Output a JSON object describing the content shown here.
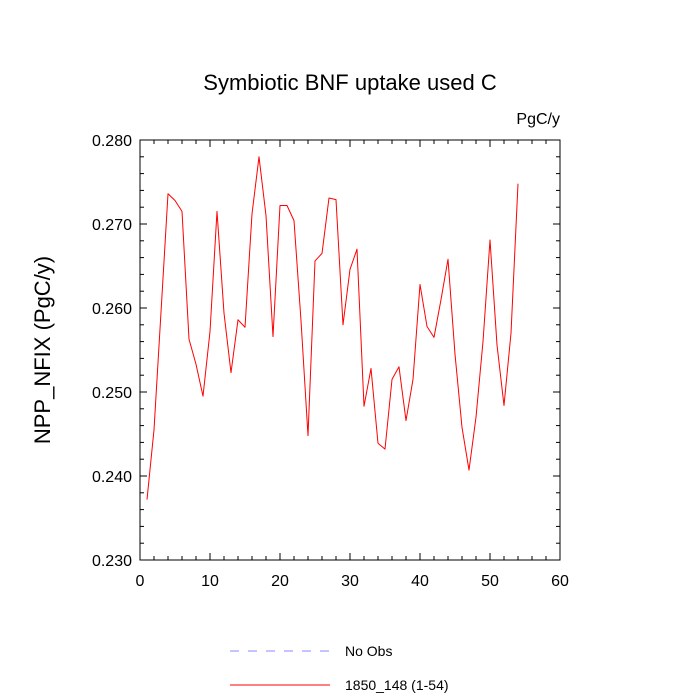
{
  "chart_data": {
    "type": "line",
    "title": "Symbiotic BNF uptake used C",
    "units_label": "PgC/y",
    "ylabel": "NPP_NFIX  (PgC/y)",
    "xlabel": "",
    "xlim": [
      0,
      60
    ],
    "ylim": [
      0.23,
      0.28
    ],
    "xticks": [
      0,
      10,
      20,
      30,
      40,
      50,
      60
    ],
    "xtick_labels": [
      "0",
      "10",
      "20",
      "30",
      "40",
      "50",
      "60"
    ],
    "yticks": [
      0.23,
      0.24,
      0.25,
      0.26,
      0.27,
      0.28
    ],
    "ytick_labels": [
      "0.230",
      "0.240",
      "0.250",
      "0.260",
      "0.270",
      "0.280"
    ],
    "grid": false,
    "legend_position": "bottom-center",
    "series": [
      {
        "name": "1850_148 (1-54)",
        "color": "#ff0000",
        "style": "solid",
        "x": [
          1,
          2,
          3,
          4,
          5,
          6,
          7,
          8,
          9,
          10,
          11,
          12,
          13,
          14,
          15,
          16,
          17,
          18,
          19,
          20,
          21,
          22,
          23,
          24,
          25,
          26,
          27,
          28,
          29,
          30,
          31,
          32,
          33,
          34,
          35,
          36,
          37,
          38,
          39,
          40,
          41,
          42,
          43,
          44,
          45,
          46,
          47,
          48,
          49,
          50,
          51,
          52,
          53,
          54
        ],
        "y": [
          0.2372,
          0.2455,
          0.2595,
          0.2736,
          0.2728,
          0.2715,
          0.2563,
          0.2533,
          0.2495,
          0.2572,
          0.2715,
          0.2594,
          0.2523,
          0.2586,
          0.2577,
          0.2712,
          0.278,
          0.271,
          0.2566,
          0.2722,
          0.2722,
          0.2704,
          0.2585,
          0.2448,
          0.2656,
          0.2665,
          0.2731,
          0.2729,
          0.258,
          0.2646,
          0.267,
          0.2483,
          0.2528,
          0.2439,
          0.2432,
          0.2515,
          0.253,
          0.2466,
          0.2515,
          0.2628,
          0.2578,
          0.2565,
          0.261,
          0.2658,
          0.2545,
          0.2458,
          0.2407,
          0.247,
          0.256,
          0.2681,
          0.2556,
          0.2484,
          0.257,
          0.2748
        ]
      }
    ],
    "legend": [
      {
        "label": "No Obs",
        "color": "#8888ff",
        "style": "dashed"
      },
      {
        "label": "1850_148 (1-54)",
        "color": "#ff0000",
        "style": "solid"
      }
    ]
  }
}
